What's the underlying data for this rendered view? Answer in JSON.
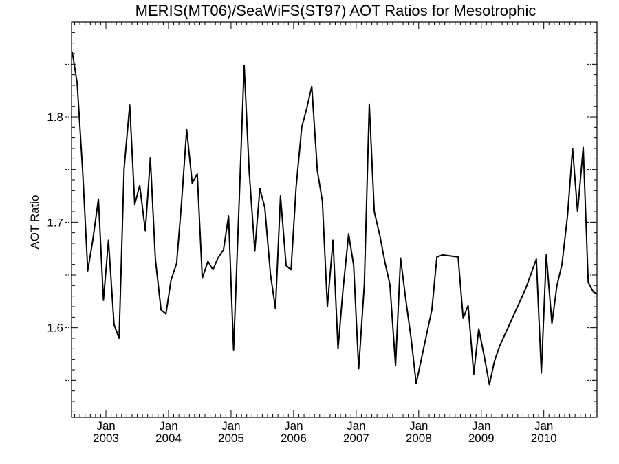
{
  "chart_data": {
    "type": "line",
    "title": "MERIS(MT06)/SeaWiFS(ST97)  AOT Ratios for Mesotrophic",
    "xlabel": "",
    "ylabel": "AOT Ratio",
    "xlim": [
      2002.45,
      2010.85
    ],
    "ylim": [
      1.515,
      1.89
    ],
    "y_ticks": [
      1.6,
      1.7,
      1.8
    ],
    "y_tick_labels": [
      "1.6",
      "1.7",
      "1.8"
    ],
    "x_ticks": [
      {
        "x": 2003.0,
        "month": "Jan",
        "year": "2003"
      },
      {
        "x": 2004.0,
        "month": "Jan",
        "year": "2004"
      },
      {
        "x": 2005.0,
        "month": "Jan",
        "year": "2005"
      },
      {
        "x": 2006.0,
        "month": "Jan",
        "year": "2006"
      },
      {
        "x": 2007.0,
        "month": "Jan",
        "year": "2007"
      },
      {
        "x": 2008.0,
        "month": "Jan",
        "year": "2008"
      },
      {
        "x": 2009.0,
        "month": "Jan",
        "year": "2009"
      },
      {
        "x": 2010.0,
        "month": "Jan",
        "year": "2010"
      }
    ],
    "grid": false,
    "series": [
      {
        "name": "",
        "color": "#000000",
        "x": [
          2002.46,
          2002.54,
          2002.63,
          2002.71,
          2002.79,
          2002.88,
          2002.96,
          2003.04,
          2003.13,
          2003.21,
          2003.29,
          2003.38,
          2003.46,
          2003.54,
          2003.63,
          2003.71,
          2003.79,
          2003.88,
          2003.96,
          2004.04,
          2004.13,
          2004.21,
          2004.29,
          2004.38,
          2004.46,
          2004.54,
          2004.63,
          2004.71,
          2004.79,
          2004.88,
          2004.96,
          2005.04,
          2005.13,
          2005.21,
          2005.29,
          2005.38,
          2005.46,
          2005.54,
          2005.63,
          2005.71,
          2005.79,
          2005.88,
          2005.96,
          2006.04,
          2006.13,
          2006.21,
          2006.29,
          2006.38,
          2006.46,
          2006.54,
          2006.63,
          2006.71,
          2006.79,
          2006.88,
          2006.96,
          2007.04,
          2007.13,
          2007.21,
          2007.29,
          2007.38,
          2007.46,
          2007.54,
          2007.63,
          2007.71,
          2007.79,
          2007.88,
          2007.96,
          2008.21,
          2008.29,
          2008.38,
          2008.63,
          2008.71,
          2008.79,
          2008.88,
          2008.96,
          2009.04,
          2009.13,
          2009.21,
          2009.29,
          2009.71,
          2009.88,
          2009.96,
          2010.04,
          2010.13,
          2010.21,
          2010.29,
          2010.38,
          2010.46,
          2010.54,
          2010.63,
          2010.71,
          2010.79,
          2010.85
        ],
        "y": [
          1.862,
          1.832,
          1.746,
          1.654,
          1.683,
          1.722,
          1.626,
          1.683,
          1.603,
          1.59,
          1.751,
          1.811,
          1.717,
          1.735,
          1.692,
          1.761,
          1.665,
          1.617,
          1.613,
          1.645,
          1.661,
          1.72,
          1.788,
          1.737,
          1.746,
          1.647,
          1.663,
          1.655,
          1.666,
          1.674,
          1.706,
          1.579,
          1.721,
          1.849,
          1.748,
          1.673,
          1.732,
          1.714,
          1.651,
          1.618,
          1.725,
          1.659,
          1.655,
          1.733,
          1.79,
          1.808,
          1.829,
          1.749,
          1.72,
          1.62,
          1.683,
          1.58,
          1.636,
          1.689,
          1.659,
          1.561,
          1.641,
          1.812,
          1.71,
          1.687,
          1.662,
          1.641,
          1.564,
          1.666,
          1.628,
          1.589,
          1.547,
          1.617,
          1.667,
          1.669,
          1.667,
          1.609,
          1.621,
          1.556,
          1.599,
          1.575,
          1.546,
          1.568,
          1.582,
          1.637,
          1.665,
          1.557,
          1.669,
          1.604,
          1.64,
          1.66,
          1.707,
          1.77,
          1.71,
          1.771,
          1.643,
          1.634,
          1.632
        ]
      }
    ]
  }
}
